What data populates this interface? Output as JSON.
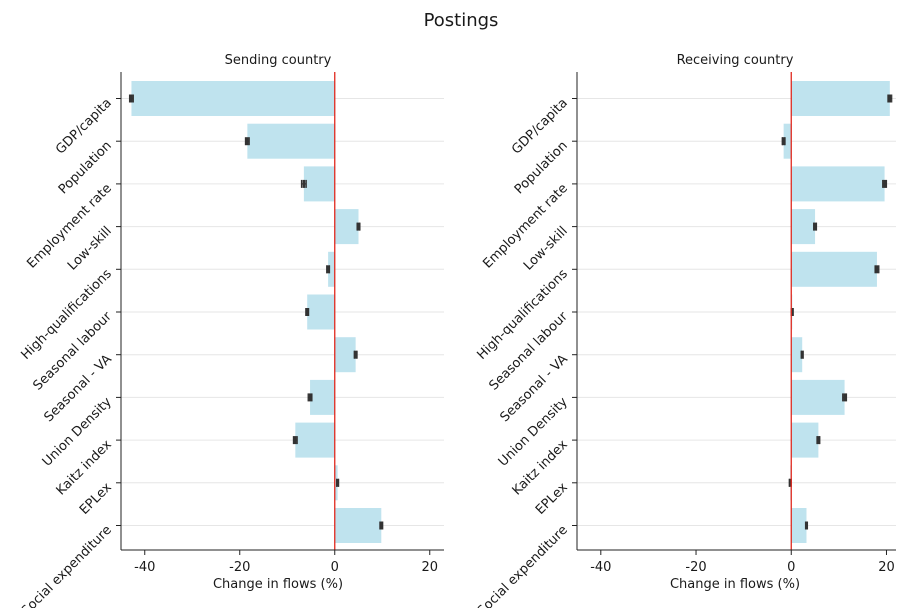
{
  "title": "Postings",
  "colors": {
    "bar": "#bfe3ee",
    "zero_line": "#e0281e",
    "grid": "#e6e6e6",
    "axis": "#222222",
    "errorbar": "#333333"
  },
  "chart_data": [
    {
      "type": "bar",
      "orientation": "horizontal",
      "title": "Sending country",
      "xlabel": "Change in flows (%)",
      "xlim": [
        -45,
        23
      ],
      "xticks": [
        -40,
        -20,
        0,
        20
      ],
      "xtick_labels": [
        "-40",
        "-20",
        "0",
        "20"
      ],
      "categories": [
        "GDP/capita",
        "Population",
        "Employment rate",
        "Low-skill",
        "High-qualifications",
        "Seasonal labour",
        "Seasonal - VA",
        "Union Density",
        "Kaitz index",
        "EPLex",
        "Social expenditure"
      ],
      "values": [
        -42.8,
        -18.4,
        -6.5,
        5.0,
        -1.4,
        -5.8,
        4.4,
        -5.2,
        -8.3,
        0.6,
        9.8
      ],
      "error": [
        0.4,
        0.4,
        0.5,
        0.3,
        0.3,
        0.3,
        0.3,
        0.4,
        0.4,
        0.2,
        0.3
      ],
      "grid": "horizontal"
    },
    {
      "type": "bar",
      "orientation": "horizontal",
      "title": "Receiving country",
      "xlabel": "Change in flows (%)",
      "xlim": [
        -45,
        22
      ],
      "xticks": [
        -40,
        -20,
        0,
        20
      ],
      "xtick_labels": [
        "-40",
        "-20",
        "0",
        "20"
      ],
      "categories": [
        "GDP/capita",
        "Population",
        "Employment rate",
        "Low-skill",
        "High-qualifications",
        "Seasonal labour",
        "Seasonal - VA",
        "Union Density",
        "Kaitz index",
        "EPLex",
        "Social expenditure"
      ],
      "values": [
        20.7,
        -1.6,
        19.6,
        5.0,
        18.0,
        0.2,
        2.3,
        11.2,
        5.7,
        -0.2,
        3.2
      ],
      "error": [
        0.4,
        0.3,
        0.4,
        0.3,
        0.4,
        0.2,
        0.2,
        0.4,
        0.3,
        0.2,
        0.2
      ],
      "grid": "horizontal"
    }
  ]
}
